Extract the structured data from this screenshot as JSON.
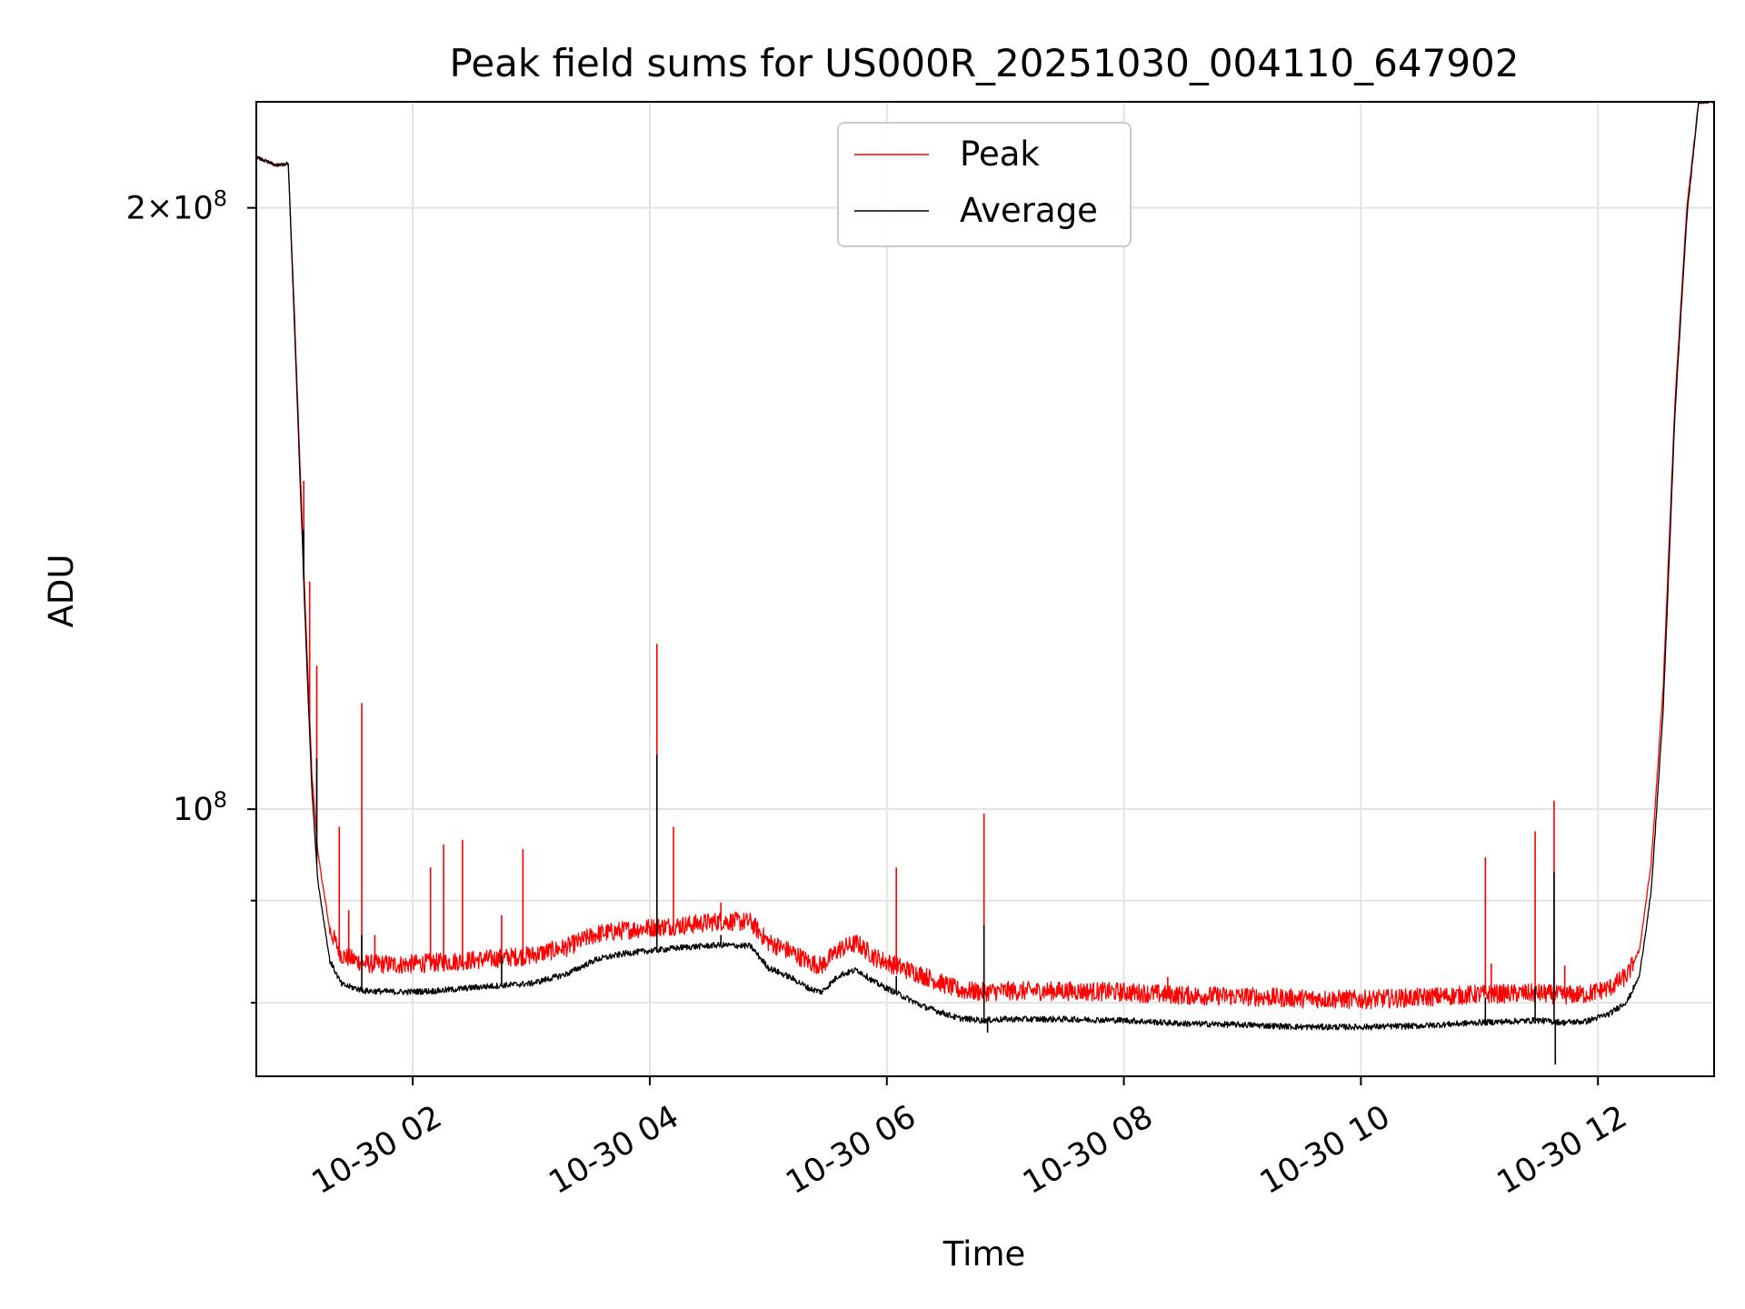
{
  "chart_data": {
    "type": "line",
    "title": "Peak field sums for US000R_20251030_004110_647902",
    "xlabel": "Time",
    "ylabel": "ADU",
    "yscale": "log",
    "x_unit": "hours since 10-30 00:00",
    "xlim": [
      0.68,
      12.98
    ],
    "ylim": [
      73500000,
      226000000
    ],
    "grid": true,
    "legend_position": "top-center",
    "x_ticks": [
      {
        "value": 2,
        "label": "10-30 02"
      },
      {
        "value": 4,
        "label": "10-30 04"
      },
      {
        "value": 6,
        "label": "10-30 06"
      },
      {
        "value": 8,
        "label": "10-30 08"
      },
      {
        "value": 10,
        "label": "10-30 10"
      },
      {
        "value": 12,
        "label": "10-30 12"
      }
    ],
    "y_ticks": [
      {
        "value": 100000000,
        "base": "10",
        "exp": "8"
      },
      {
        "value": 200000000,
        "mantissa": "2",
        "base": "10",
        "exp": "8"
      }
    ],
    "y_minor_ticks": [
      80000000,
      90000000
    ],
    "series": [
      {
        "name": "Peak",
        "color": "#ff0000",
        "x": [
          0.68,
          0.85,
          0.95,
          1.0,
          1.05,
          1.1,
          1.15,
          1.2,
          1.3,
          1.4,
          1.6,
          1.9,
          2.2,
          2.6,
          3.0,
          3.3,
          3.55,
          3.8,
          4.05,
          4.3,
          4.6,
          4.85,
          5.0,
          5.2,
          5.35,
          5.45,
          5.6,
          5.75,
          5.9,
          6.1,
          6.3,
          6.6,
          6.8,
          7.0,
          7.5,
          8.0,
          8.5,
          9.0,
          9.5,
          10.0,
          10.5,
          11.0,
          11.5,
          11.7,
          11.9,
          12.1,
          12.25,
          12.35,
          12.45,
          12.55,
          12.65,
          12.75,
          12.85,
          12.98
        ],
        "y": [
          212000000,
          210000000,
          210500000,
          178000000,
          148000000,
          123000000,
          104000000,
          95000000,
          87000000,
          84500000,
          83700000,
          83600000,
          83800000,
          84100000,
          84500000,
          85300000,
          86600000,
          87000000,
          87300000,
          87500000,
          87900000,
          87800000,
          85800000,
          84800000,
          83800000,
          83500000,
          85100000,
          85700000,
          84300000,
          83400000,
          82600000,
          81200000,
          81000000,
          81100000,
          81100000,
          81000000,
          80700000,
          80600000,
          80400000,
          80300000,
          80500000,
          80800000,
          80900000,
          80700000,
          80800000,
          81400000,
          82600000,
          85000000,
          94000000,
          115000000,
          160000000,
          200000000,
          226000000,
          226000000
        ],
        "spikes": [
          {
            "x": 1.08,
            "y": 146000000
          },
          {
            "x": 1.13,
            "y": 130000000
          },
          {
            "x": 1.19,
            "y": 118000000
          },
          {
            "x": 1.38,
            "y": 98000000
          },
          {
            "x": 1.46,
            "y": 89000000
          },
          {
            "x": 1.57,
            "y": 113000000
          },
          {
            "x": 1.68,
            "y": 86500000
          },
          {
            "x": 2.15,
            "y": 93500000
          },
          {
            "x": 2.26,
            "y": 96000000
          },
          {
            "x": 2.42,
            "y": 96500000
          },
          {
            "x": 2.75,
            "y": 88500000
          },
          {
            "x": 2.93,
            "y": 95500000
          },
          {
            "x": 4.06,
            "y": 121000000
          },
          {
            "x": 4.2,
            "y": 98000000
          },
          {
            "x": 4.6,
            "y": 89800000
          },
          {
            "x": 6.08,
            "y": 93500000
          },
          {
            "x": 6.82,
            "y": 99500000
          },
          {
            "x": 8.37,
            "y": 82400000
          },
          {
            "x": 11.05,
            "y": 94600000
          },
          {
            "x": 11.1,
            "y": 83700000
          },
          {
            "x": 11.47,
            "y": 97500000
          },
          {
            "x": 11.63,
            "y": 101000000
          },
          {
            "x": 11.72,
            "y": 83500000
          }
        ]
      },
      {
        "name": "Average",
        "color": "#000000",
        "x": [
          0.68,
          0.85,
          0.95,
          1.0,
          1.05,
          1.1,
          1.15,
          1.2,
          1.3,
          1.4,
          1.6,
          1.9,
          2.2,
          2.6,
          3.0,
          3.3,
          3.55,
          3.8,
          4.05,
          4.3,
          4.6,
          4.85,
          5.0,
          5.2,
          5.35,
          5.45,
          5.6,
          5.75,
          5.9,
          6.1,
          6.3,
          6.6,
          6.8,
          7.0,
          7.5,
          8.0,
          8.5,
          9.0,
          9.5,
          10.0,
          10.5,
          11.0,
          11.5,
          11.7,
          11.9,
          12.1,
          12.25,
          12.35,
          12.45,
          12.55,
          12.65,
          12.75,
          12.85,
          12.98
        ],
        "y": [
          212000000,
          210000000,
          210500000,
          176000000,
          146000000,
          121000000,
          102000000,
          92000000,
          84000000,
          81700000,
          81100000,
          81000000,
          81100000,
          81500000,
          81800000,
          82700000,
          84100000,
          84700000,
          85000000,
          85300000,
          85500000,
          85400000,
          83300000,
          82300000,
          81300000,
          81000000,
          82600000,
          83100000,
          81900000,
          80800000,
          79700000,
          78600000,
          78400000,
          78500000,
          78500000,
          78400000,
          78100000,
          78000000,
          77800000,
          77800000,
          77900000,
          78200000,
          78400000,
          78200000,
          78300000,
          79000000,
          80200000,
          82500000,
          91000000,
          112000000,
          158000000,
          198000000,
          226000000,
          226000000
        ],
        "spikes": [
          {
            "x": 1.08,
            "y": 138000000
          },
          {
            "x": 1.19,
            "y": 106000000
          },
          {
            "x": 1.57,
            "y": 86500000
          },
          {
            "x": 2.75,
            "y": 84500000
          },
          {
            "x": 4.06,
            "y": 106500000
          },
          {
            "x": 4.6,
            "y": 86500000
          },
          {
            "x": 6.08,
            "y": 82500000
          },
          {
            "x": 6.82,
            "y": 87500000
          },
          {
            "x": 11.05,
            "y": 80500000
          },
          {
            "x": 11.47,
            "y": 81500000
          },
          {
            "x": 11.63,
            "y": 93000000
          }
        ],
        "dips": [
          {
            "x": 6.85,
            "y": 77300000
          },
          {
            "x": 11.64,
            "y": 74500000
          }
        ]
      }
    ]
  }
}
